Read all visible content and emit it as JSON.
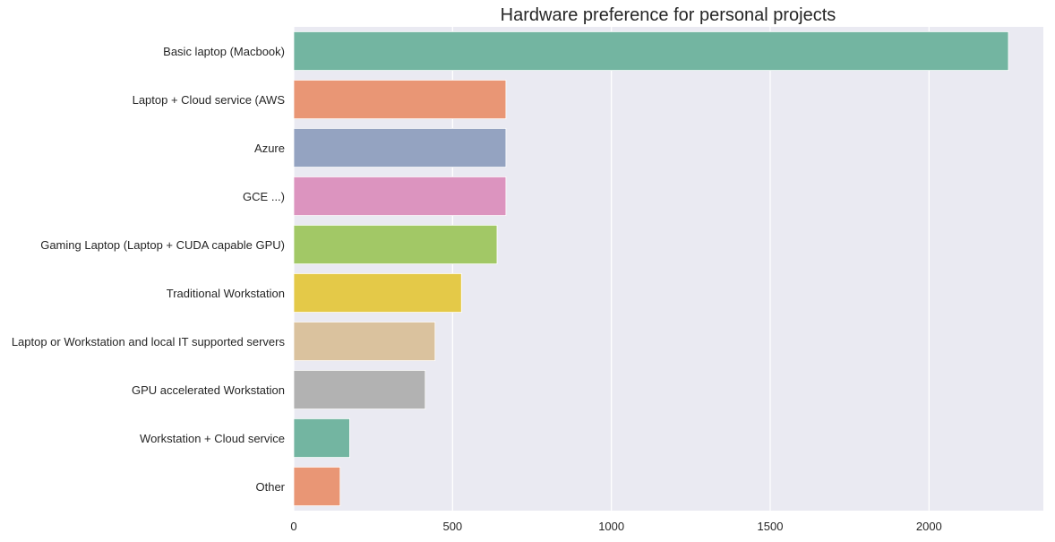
{
  "chart_data": {
    "type": "bar",
    "orientation": "horizontal",
    "title": "Hardware preference for personal projects",
    "xlabel": "",
    "ylabel": "",
    "xlim": [
      0,
      2360
    ],
    "xticks": [
      0,
      500,
      1000,
      1500,
      2000
    ],
    "xtick_labels": [
      "0",
      "500",
      "1000",
      "1500",
      "2000"
    ],
    "grid": "vertical",
    "categories": [
      "Basic laptop (Macbook)",
      "Laptop + Cloud service (AWS",
      "Azure",
      "GCE ...)",
      "Gaming Laptop (Laptop + CUDA capable GPU)",
      "Traditional Workstation",
      "Laptop or Workstation and local IT supported servers",
      "GPU accelerated Workstation",
      "Workstation + Cloud service",
      "Other"
    ],
    "values": [
      2250,
      668,
      668,
      668,
      640,
      528,
      445,
      414,
      176,
      146
    ],
    "colors": [
      "#73b5a1",
      "#e99675",
      "#94a3c1",
      "#dc94bf",
      "#a2c866",
      "#e4c948",
      "#dac29e",
      "#b2b2b2",
      "#73b5a1",
      "#e99675"
    ],
    "plot_background": "#eaeaf2",
    "grid_color": "#ffffff",
    "text_color": "#262626"
  }
}
